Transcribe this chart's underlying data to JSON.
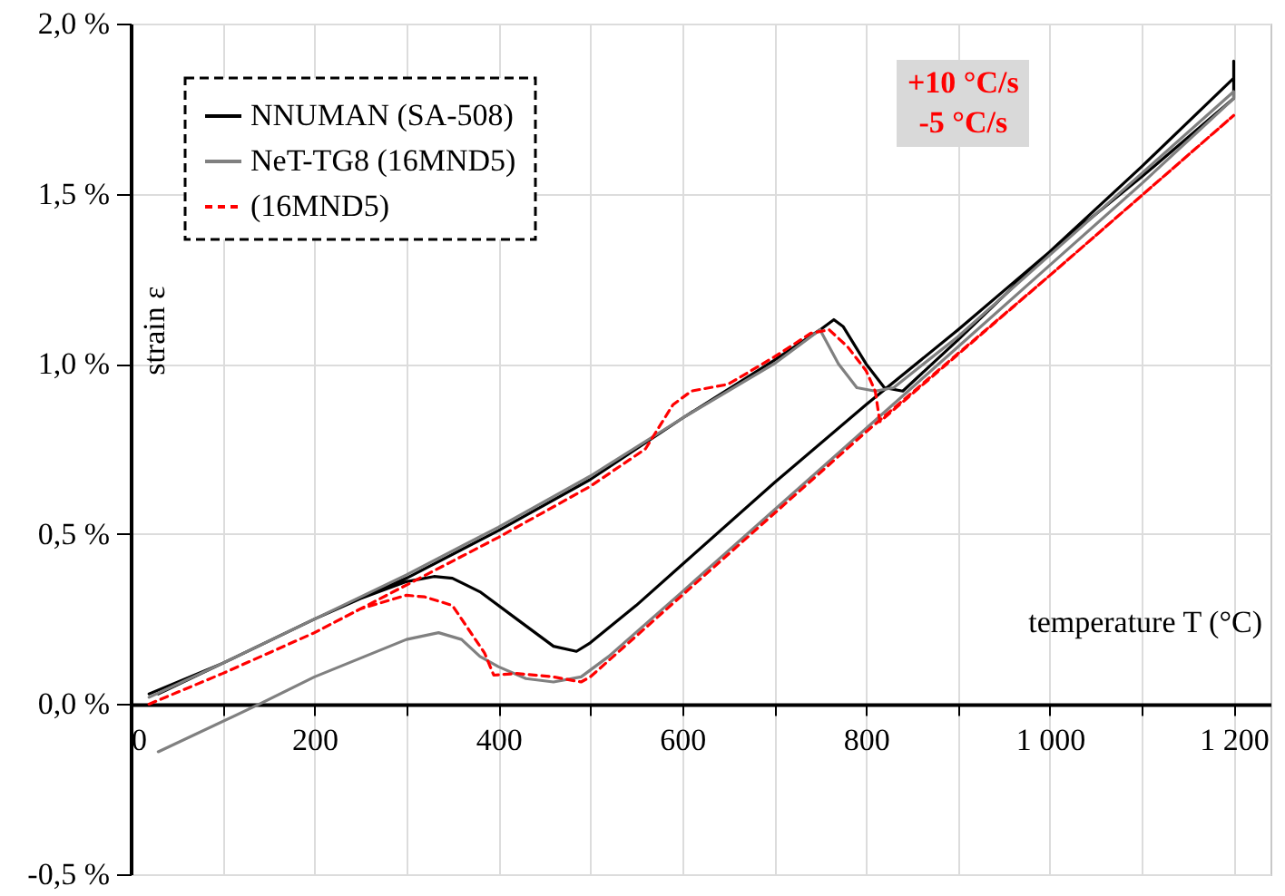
{
  "chart_data": {
    "type": "line",
    "xlabel": "temperature T (°C)",
    "ylabel": "strain ε",
    "xlim": [
      0,
      1240
    ],
    "ylim": [
      -0.5,
      2.0
    ],
    "xticks": [
      0,
      {
        "value": 100,
        "label": null
      },
      200,
      {
        "value": 300,
        "label": null
      },
      400,
      {
        "value": 500,
        "label": null
      },
      600,
      {
        "value": 700,
        "label": null
      },
      800,
      {
        "value": 900,
        "label": null
      },
      {
        "value": 1000,
        "label": "1 000"
      },
      {
        "value": 1100,
        "label": null
      },
      {
        "value": 1200,
        "label": "1 200"
      }
    ],
    "yticks": [
      {
        "value": -0.5,
        "label": "-0,5 %"
      },
      {
        "value": 0,
        "label": "0,0 %"
      },
      {
        "value": 0.5,
        "label": "0,5 %"
      },
      {
        "value": 1.0,
        "label": "1,0 %"
      },
      {
        "value": 1.5,
        "label": "1,5 %"
      },
      {
        "value": 2.0,
        "label": "2,0 %"
      }
    ],
    "grid": true,
    "legend": "top left",
    "marker": "none",
    "annotations": [
      "+10 °C/s",
      "-5 °C/s"
    ],
    "series": [
      {
        "name": "NNUMAN (SA-508)",
        "color": "#000000",
        "line_style": "solid",
        "x": [
          20,
          100,
          200,
          300,
          400,
          500,
          600,
          700,
          750,
          765,
          775,
          800,
          820,
          840,
          900,
          1000,
          1100,
          1200,
          1200,
          1200,
          1100,
          1000,
          900,
          800,
          700,
          600,
          550,
          500,
          485,
          460,
          420,
          380,
          350,
          330,
          300,
          250,
          200,
          100,
          30
        ],
        "values": [
          0.03,
          0.12,
          0.25,
          0.37,
          0.51,
          0.66,
          0.84,
          1.01,
          1.1,
          1.13,
          1.11,
          1.0,
          0.93,
          0.92,
          1.07,
          1.33,
          1.58,
          1.84,
          1.89,
          1.78,
          1.55,
          1.33,
          1.1,
          0.88,
          0.65,
          0.41,
          0.29,
          0.18,
          0.155,
          0.17,
          0.25,
          0.33,
          0.37,
          0.375,
          0.36,
          0.31,
          0.25,
          0.12,
          0.03
        ]
      },
      {
        "name": "NeT-TG8 (16MND5)",
        "color": "#808080",
        "line_style": "solid",
        "x": [
          20,
          100,
          200,
          300,
          400,
          500,
          600,
          700,
          750,
          770,
          790,
          810,
          830,
          900,
          1000,
          1100,
          1200,
          1200,
          1100,
          1000,
          900,
          800,
          700,
          600,
          520,
          490,
          460,
          430,
          400,
          380,
          360,
          335,
          300,
          200,
          140,
          30
        ],
        "values": [
          0.02,
          0.12,
          0.25,
          0.38,
          0.52,
          0.67,
          0.84,
          1.0,
          1.1,
          1.0,
          0.93,
          0.92,
          0.93,
          1.08,
          1.32,
          1.56,
          1.8,
          1.78,
          1.53,
          1.29,
          1.05,
          0.81,
          0.57,
          0.33,
          0.14,
          0.08,
          0.065,
          0.075,
          0.11,
          0.14,
          0.19,
          0.21,
          0.19,
          0.08,
          0.0,
          -0.14
        ]
      },
      {
        "name": "(16MND5)",
        "color": "#ff0000",
        "line_style": "dashed",
        "x": [
          20,
          100,
          200,
          300,
          400,
          500,
          560,
          590,
          610,
          650,
          700,
          740,
          760,
          780,
          800,
          810,
          815,
          1000,
          1200,
          1000,
          800,
          700,
          600,
          500,
          490,
          460,
          420,
          395,
          385,
          375,
          350,
          320,
          300,
          250,
          200
        ],
        "values": [
          0.0,
          0.09,
          0.21,
          0.35,
          0.49,
          0.64,
          0.75,
          0.88,
          0.92,
          0.94,
          1.02,
          1.09,
          1.1,
          1.05,
          0.98,
          0.92,
          0.83,
          1.26,
          1.73,
          1.26,
          0.8,
          0.56,
          0.32,
          0.08,
          0.065,
          0.08,
          0.09,
          0.085,
          0.15,
          0.19,
          0.29,
          0.315,
          0.32,
          0.28,
          0.21
        ]
      }
    ]
  }
}
